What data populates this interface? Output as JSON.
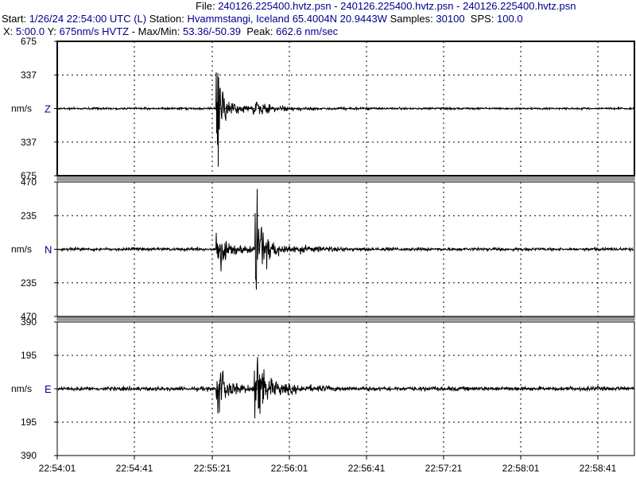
{
  "header": {
    "file_label": "File:",
    "file_value": "240126.225400.hvtz.psn - 240126.225400.hvtz.psn - 240126.225400.hvtz.psn",
    "start_label": "Start:",
    "start_value": "1/26/24 22:54:00 UTC (L)",
    "station_label": "Station:",
    "station_value": "Hvammstangi, Iceland 65.4004N 20.9443W",
    "samples_label": "Samples:",
    "samples_value": "30100",
    "sps_label": "SPS:",
    "sps_value": "100.0",
    "x_label": "X:",
    "x_value": "5:00.0",
    "y_label": "Y:",
    "y_value": "675nm/s HVTZ",
    "maxmin_label": "- Max/Min:",
    "maxmin_value": "53.36/-50.39",
    "peak_label": "Peak:",
    "peak_value": "662.6 nm/sec"
  },
  "unit_label": "nm/s",
  "channels": [
    {
      "name": "Z",
      "ticks": [
        "675",
        "337",
        "",
        "337",
        "675"
      ],
      "selected": true
    },
    {
      "name": "N",
      "ticks": [
        "470",
        "235",
        "",
        "235",
        "470"
      ],
      "selected": false
    },
    {
      "name": "E",
      "ticks": [
        "390",
        "195",
        "",
        "195",
        "390"
      ],
      "selected": false
    }
  ],
  "time_ticks": [
    "22:54:01",
    "22:54:41",
    "22:55:21",
    "22:56:01",
    "22:56:41",
    "22:57:21",
    "22:58:01",
    "22:58:41"
  ],
  "colors": {
    "header_value": "#00008b",
    "channel_label": "#00008b",
    "trace": "#000000",
    "grid": "#000000",
    "separator": "#a0a0a0"
  }
}
